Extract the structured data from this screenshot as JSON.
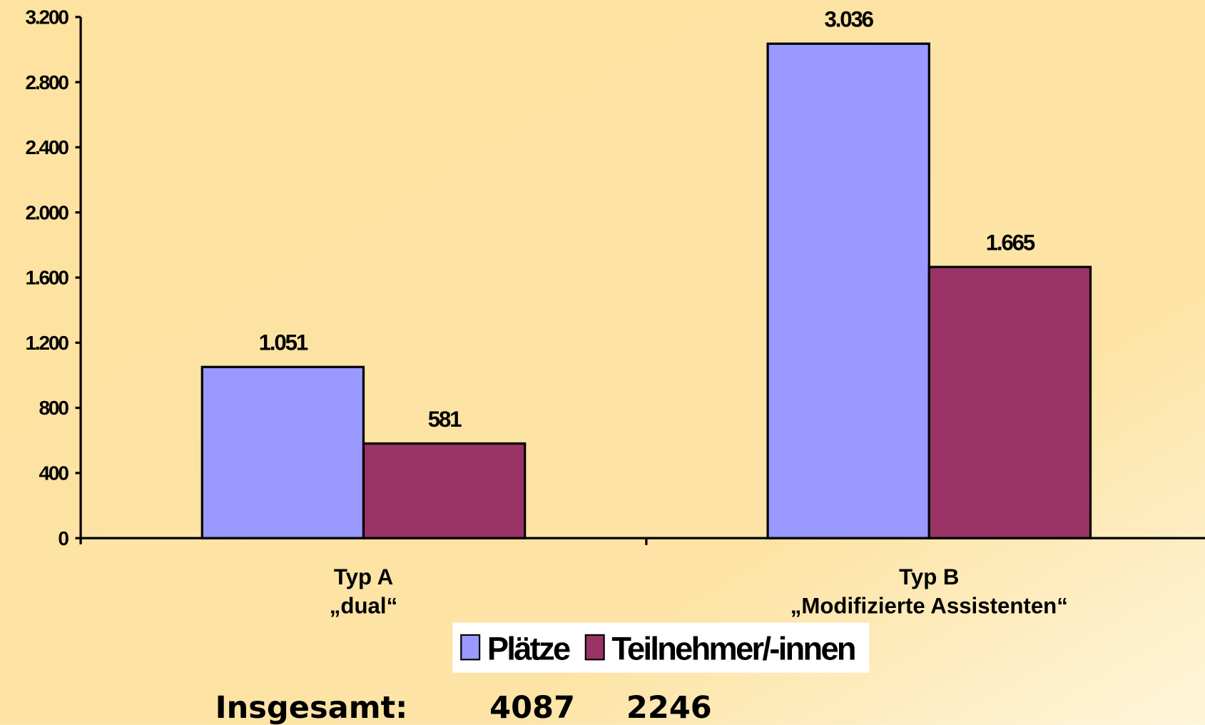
{
  "chart_data": {
    "type": "bar",
    "categories": [
      [
        "Typ A",
        "„dual“"
      ],
      [
        "Typ B",
        "„Modifizierte Assistenten“"
      ]
    ],
    "series": [
      {
        "name": "Plätze",
        "color": "#9999ff",
        "values": [
          1051,
          3036
        ],
        "value_labels": [
          "1.051",
          "3.036"
        ]
      },
      {
        "name": "Teilnehmer/-innen",
        "color": "#993366",
        "values": [
          581,
          1665
        ],
        "value_labels": [
          "581",
          "1.665"
        ]
      }
    ],
    "ylim": [
      0,
      3200
    ],
    "yticks": [
      0,
      400,
      800,
      {
        "value": 1200,
        "label": "1.200"
      },
      {
        "value": 1600,
        "label": "1.600"
      },
      {
        "value": 2000,
        "label": "2.000"
      },
      {
        "value": 2400,
        "label": "2.400"
      },
      {
        "value": 2800,
        "label": "2.800"
      },
      {
        "value": 3200,
        "label": "3.200"
      }
    ],
    "legend": "bottom",
    "totals": {
      "label": "Insgesamt:",
      "values": [
        4087,
        2246
      ]
    }
  }
}
